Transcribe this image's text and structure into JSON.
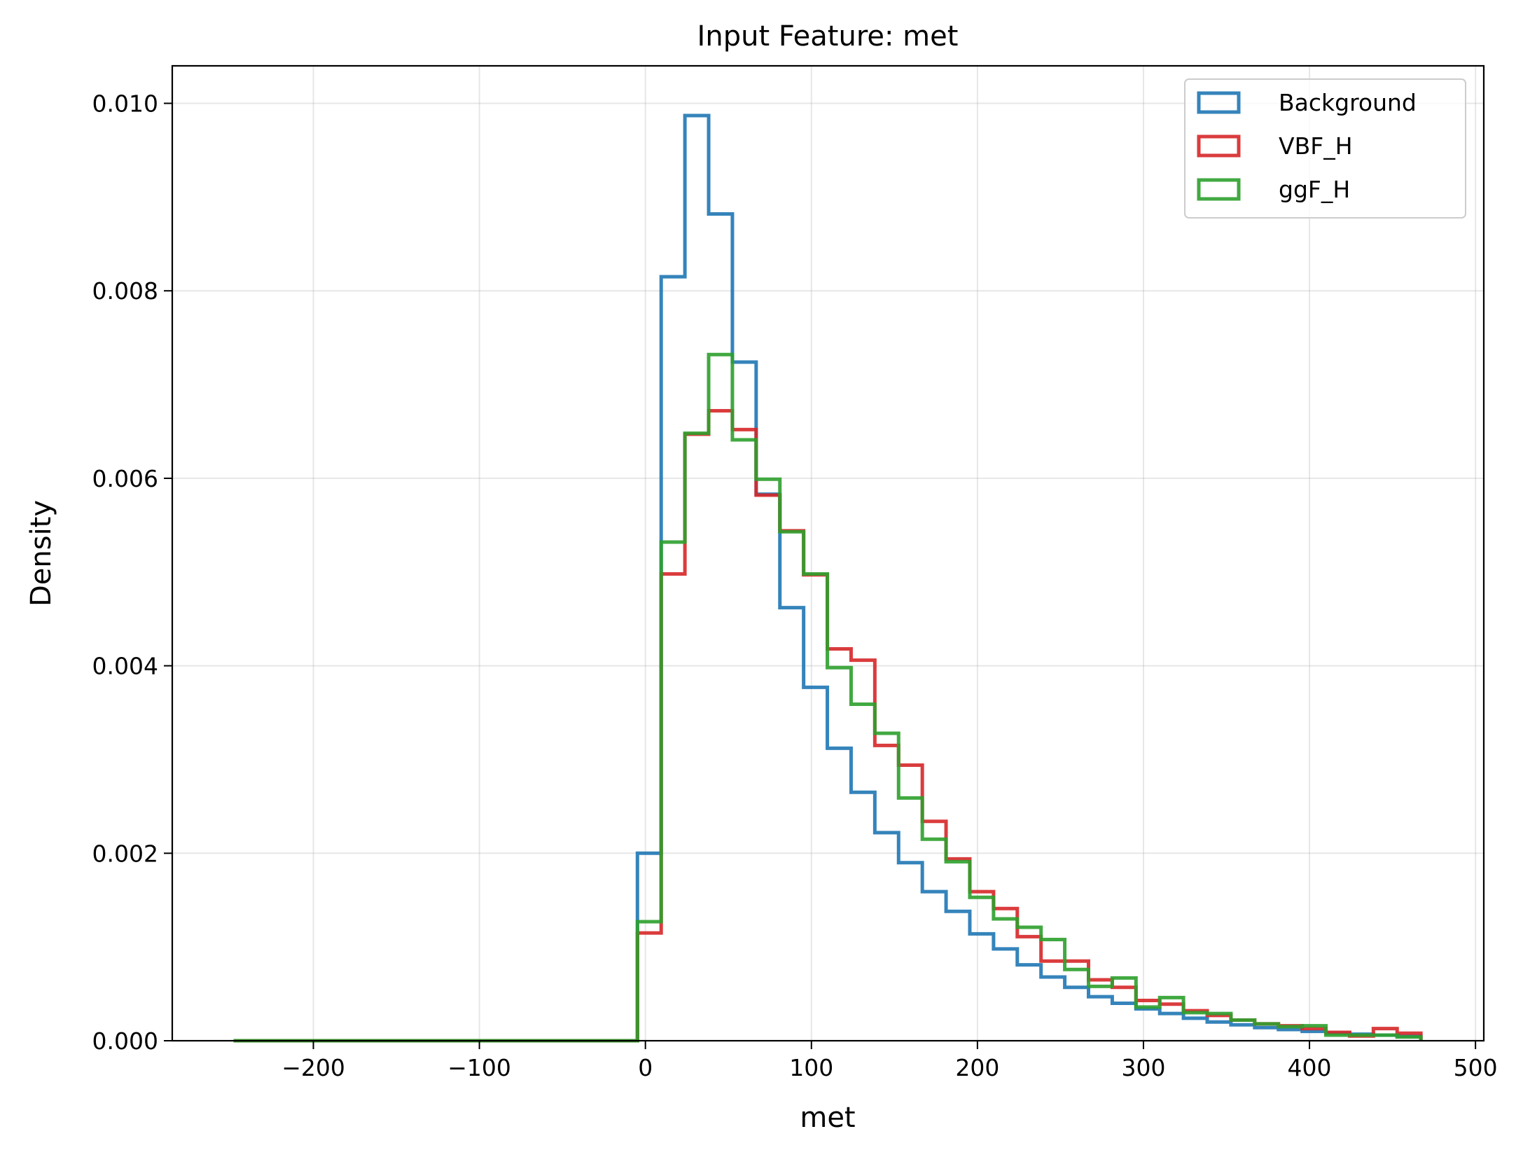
{
  "chart_data": {
    "type": "histogram",
    "title": "Input Feature: met",
    "xlabel": "met",
    "ylabel": "Density",
    "xlim": [
      -285,
      505
    ],
    "ylim": [
      0,
      0.0104
    ],
    "x_ticks": [
      -200,
      -100,
      0,
      100,
      200,
      300,
      400,
      500
    ],
    "x_tick_labels": [
      "−200",
      "−100",
      "0",
      "100",
      "200",
      "300",
      "400",
      "500"
    ],
    "y_ticks": [
      0,
      0.002,
      0.004,
      0.006,
      0.008,
      0.01
    ],
    "y_tick_labels": [
      "0.000",
      "0.002",
      "0.004",
      "0.006",
      "0.008",
      "0.010"
    ],
    "grid": true,
    "legend_position": "top-right",
    "bin_edges": [
      -248.0,
      -4.8,
      9.5,
      23.8,
      38.1,
      52.4,
      66.7,
      81.0,
      95.3,
      109.6,
      123.9,
      138.2,
      152.5,
      166.8,
      181.1,
      195.4,
      209.7,
      224.0,
      238.3,
      252.6,
      266.9,
      281.2,
      295.5,
      309.8,
      324.1,
      338.4,
      352.7,
      367.0,
      381.3,
      395.6,
      409.9,
      424.2,
      438.5,
      452.8,
      467.1
    ],
    "series": [
      {
        "name": "Background",
        "color": "#1f77b4",
        "values": [
          0.0,
          0.002,
          0.00815,
          0.00987,
          0.00882,
          0.00724,
          0.00583,
          0.00462,
          0.00377,
          0.00312,
          0.00265,
          0.00222,
          0.0019,
          0.00159,
          0.00138,
          0.00114,
          0.00098,
          0.00081,
          0.00068,
          0.00057,
          0.00047,
          0.0004,
          0.00034,
          0.00029,
          0.00024,
          0.0002,
          0.00017,
          0.00014,
          0.00012,
          0.0001,
          8e-05,
          7e-05,
          6e-05,
          5e-05
        ]
      },
      {
        "name": "VBF_H",
        "color": "#d62728",
        "values": [
          0.0,
          0.00115,
          0.00498,
          0.00647,
          0.00672,
          0.00652,
          0.00582,
          0.00544,
          0.00497,
          0.00418,
          0.00406,
          0.00315,
          0.00294,
          0.00234,
          0.00194,
          0.00159,
          0.00141,
          0.00111,
          0.00085,
          0.00085,
          0.00065,
          0.00057,
          0.00043,
          0.00039,
          0.00032,
          0.00027,
          0.00022,
          0.00018,
          0.00016,
          0.00013,
          9e-05,
          5e-05,
          0.00013,
          8e-05
        ]
      },
      {
        "name": "ggF_H",
        "color": "#2ca02c",
        "values": [
          0.0,
          0.00127,
          0.00532,
          0.00648,
          0.00732,
          0.00641,
          0.00599,
          0.00543,
          0.00498,
          0.00398,
          0.00359,
          0.00328,
          0.00259,
          0.00215,
          0.00191,
          0.00153,
          0.0013,
          0.00121,
          0.00108,
          0.00076,
          0.00058,
          0.00067,
          0.00036,
          0.00046,
          0.0003,
          0.00029,
          0.00022,
          0.00018,
          0.00015,
          0.00016,
          6e-05,
          6e-05,
          6e-05,
          4e-05
        ]
      }
    ]
  }
}
